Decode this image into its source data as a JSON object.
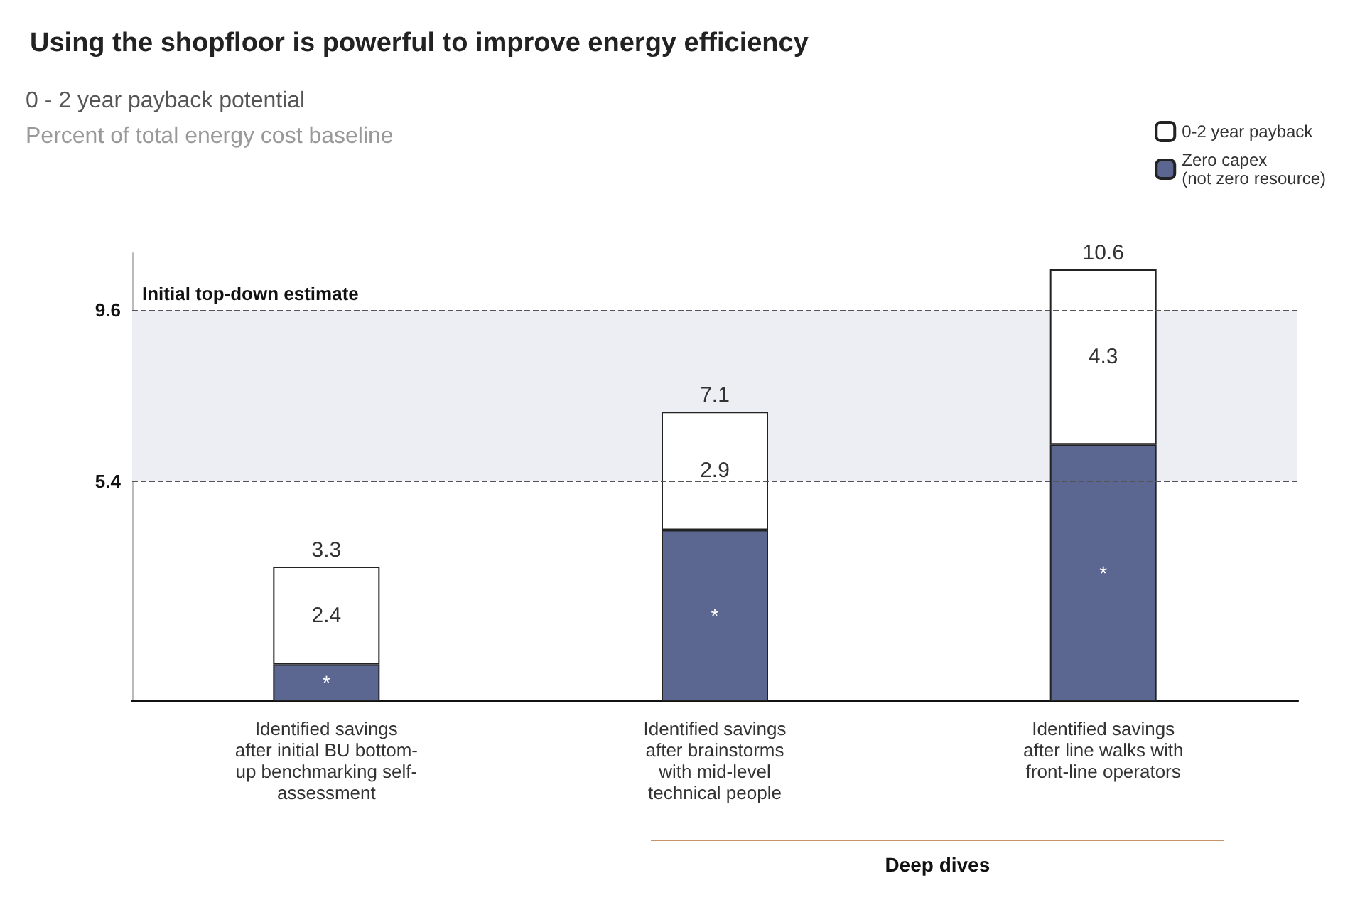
{
  "chart_data": {
    "type": "bar",
    "stacked": true,
    "title": "Using the shopfloor is powerful to improve energy efficiency",
    "subtitle": "0 - 2 year payback potential\nPercent of total energy cost baseline",
    "categories": [
      "Identified savings\nafter initial BU bottom-\nup benchmarking self-\nassessment",
      "Identified savings\nafter brainstorms\nwith mid-level\ntechnical people",
      "Identified savings\nafter line walks with\nfront-line operators"
    ],
    "series": [
      {
        "name": "Zero capex\n(not zero resource)",
        "color": "#5b6791",
        "values": [
          0.9,
          4.2,
          6.3
        ],
        "value_labels": [
          "*",
          "*",
          "*"
        ]
      },
      {
        "name": "0-2 year payback",
        "color": "#ffffff",
        "values": [
          2.4,
          2.9,
          4.3
        ]
      }
    ],
    "data_labels": true,
    "totals": [
      "3.3",
      "7.1",
      "10.6"
    ],
    "ylim": [
      0,
      11
    ],
    "yticks": [
      5.4,
      9.6
    ],
    "legend": "top right",
    "ref_lines": [
      {
        "axis": "y",
        "value": 9.6,
        "label": "Initial top-down estimate",
        "line_style": "dashed"
      },
      {
        "axis": "y",
        "value": 5.4,
        "label": null,
        "line_style": "dashed"
      }
    ],
    "bands": [
      {
        "axis": "y",
        "from": 5.4,
        "to": 9.6,
        "color": "#eceef4"
      }
    ],
    "annotations": [
      "Deep dives"
    ]
  }
}
